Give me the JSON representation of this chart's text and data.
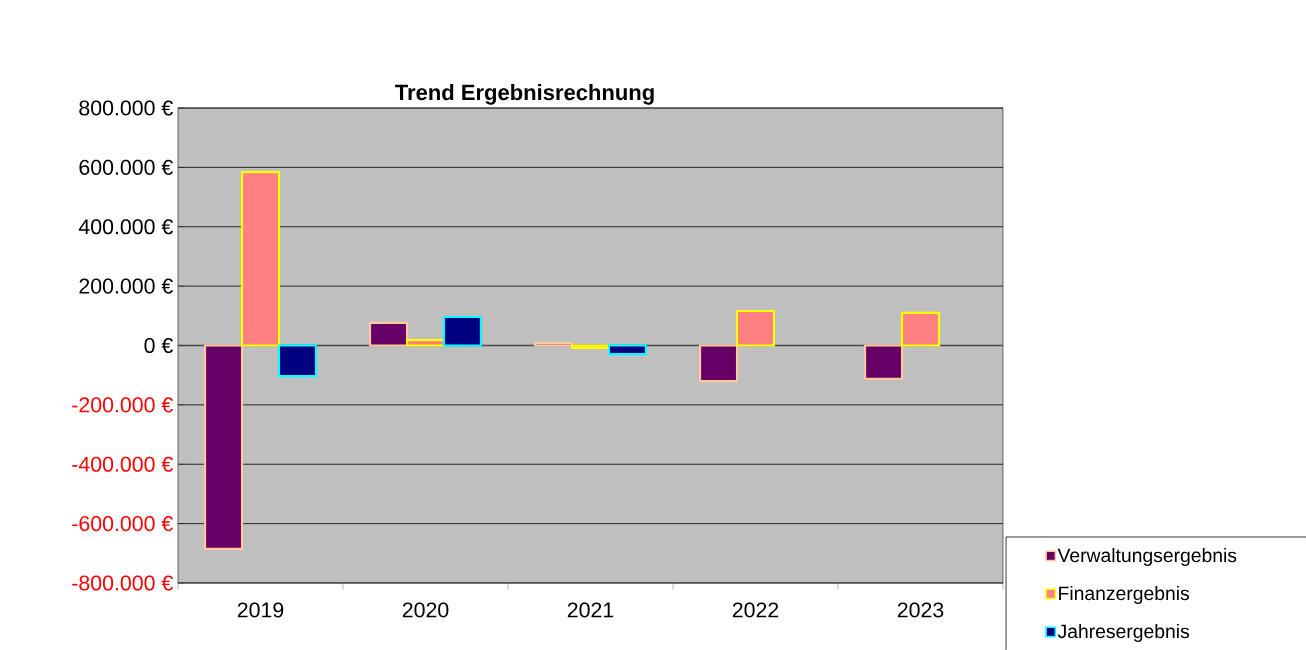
{
  "chart_data": {
    "type": "bar",
    "title": "Trend Ergebnisrechnung",
    "categories": [
      "2019",
      "2020",
      "2021",
      "2022",
      "2023"
    ],
    "series": [
      {
        "name": "Verwaltungsergebnis",
        "color": "#660066",
        "values": [
          -685000,
          76000,
          8000,
          -120000,
          -112000
        ]
      },
      {
        "name": "Finanzergebnis",
        "color": "#ff8080",
        "values": [
          584000,
          18000,
          -8000,
          116000,
          110000
        ]
      },
      {
        "name": "Jahresergebnis",
        "color": "#000080",
        "values": [
          -103000,
          96000,
          -29000,
          null,
          null
        ]
      }
    ],
    "ylim": [
      -800000,
      800000
    ],
    "yticks": [
      {
        "value": -800000,
        "label": "-800.000 €"
      },
      {
        "value": -600000,
        "label": "-600.000 €"
      },
      {
        "value": -400000,
        "label": "-400.000 €"
      },
      {
        "value": -200000,
        "label": "-200.000 €"
      },
      {
        "value": 0,
        "label": "0 €"
      },
      {
        "value": 200000,
        "label": "200.000 €"
      },
      {
        "value": 400000,
        "label": "400.000 €"
      },
      {
        "value": 600000,
        "label": "600.000 €"
      },
      {
        "value": 800000,
        "label": "800.000 €"
      }
    ],
    "grid": "y",
    "legend": "bottom right"
  }
}
